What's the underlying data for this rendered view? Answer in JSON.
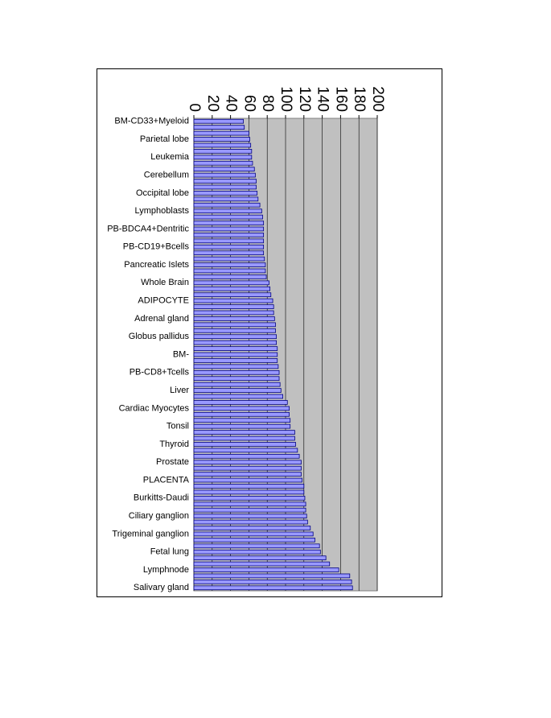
{
  "chart_data": {
    "type": "bar",
    "orientation": "horizontal",
    "categories": [
      "BM-CD33+Myeloid",
      null,
      null,
      "Parietal lobe",
      null,
      null,
      "Leukemia",
      null,
      null,
      "Cerebellum",
      null,
      null,
      "Occipital lobe",
      null,
      null,
      "Lymphoblasts",
      null,
      null,
      "PB-BDCA4+Dentritic",
      null,
      null,
      "PB-CD19+Bcells",
      null,
      null,
      "Pancreatic Islets",
      null,
      null,
      "Whole Brain",
      null,
      null,
      "ADIPOCYTE",
      null,
      null,
      "Adrenal gland",
      null,
      null,
      "Globus pallidus",
      null,
      null,
      "BM-",
      null,
      null,
      "PB-CD8+Tcells",
      null,
      null,
      "Liver",
      null,
      null,
      "Cardiac Myocytes",
      null,
      null,
      "Tonsil",
      null,
      null,
      "Thyroid",
      null,
      null,
      "Prostate",
      null,
      null,
      "PLACENTA",
      null,
      null,
      "Burkitts-Daudi",
      null,
      null,
      "Ciliary ganglion",
      null,
      null,
      "Trigeminal ganglion",
      null,
      null,
      "Fetal lung",
      null,
      null,
      "Lymphnode",
      null,
      null,
      "Salivary gland"
    ],
    "values": [
      54,
      55,
      60,
      61,
      62,
      63,
      63,
      64,
      66,
      67,
      68,
      68,
      69,
      70,
      72,
      74,
      75,
      76,
      76,
      76,
      76,
      76,
      76,
      77,
      78,
      78,
      79,
      82,
      83,
      84,
      86,
      87,
      87,
      88,
      89,
      89,
      90,
      90,
      91,
      91,
      91,
      92,
      93,
      93,
      94,
      95,
      97,
      102,
      104,
      104,
      105,
      105,
      110,
      110,
      111,
      113,
      115,
      117,
      117,
      117,
      118,
      120,
      120,
      121,
      122,
      122,
      123,
      124,
      127,
      130,
      132,
      137,
      138,
      144,
      148,
      158,
      170,
      172,
      173
    ],
    "color": "#9999ff",
    "xlim": [
      0,
      200
    ],
    "xticks": [
      0,
      20,
      40,
      60,
      80,
      100,
      120,
      140,
      160,
      180,
      200
    ],
    "grid": true
  }
}
